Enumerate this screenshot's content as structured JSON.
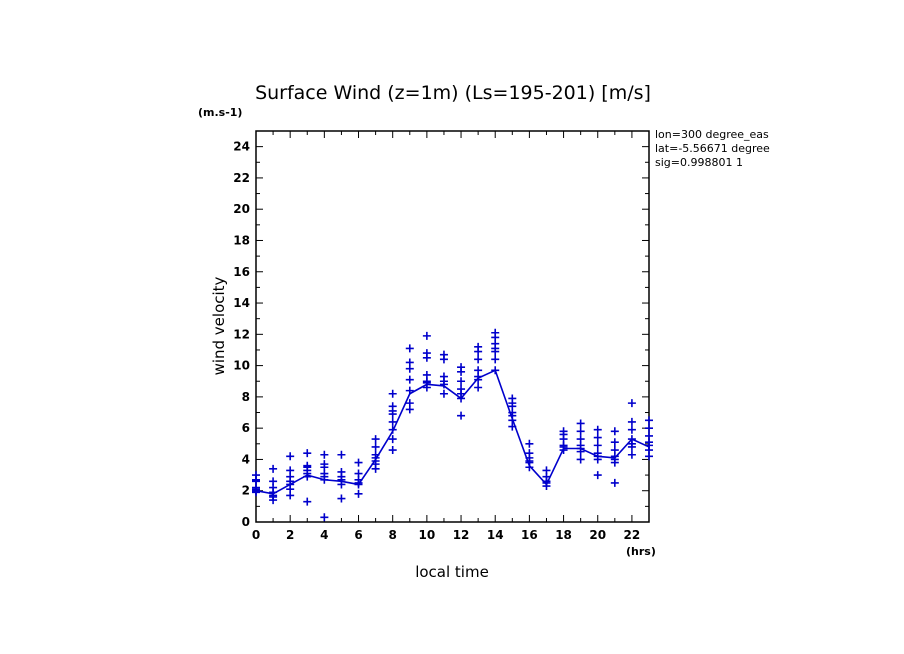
{
  "colors": {
    "series": "#0000cc",
    "axis": "#000000",
    "background": "#ffffff"
  },
  "chart_data": {
    "type": "line",
    "title": "Surface Wind (z=1m) (Ls=195-201) [m/s]",
    "xlabel": "local time",
    "ylabel": "wind velocity",
    "xunit": "(hrs)",
    "yunit": "(m.s-1)",
    "xlim": [
      0,
      23
    ],
    "ylim": [
      0,
      25
    ],
    "xticks": [
      0,
      2,
      4,
      6,
      8,
      10,
      12,
      14,
      16,
      18,
      20,
      22
    ],
    "yticks": [
      0,
      2,
      4,
      6,
      8,
      10,
      12,
      14,
      16,
      18,
      20,
      22,
      24
    ],
    "grid": false,
    "annotations": [
      "lon=300 degree_eas",
      "lat=-5.56671 degree",
      "sig=0.998801 1"
    ],
    "mean_line": {
      "x": [
        0,
        1,
        2,
        3,
        4,
        5,
        6,
        7,
        8,
        9,
        10,
        11,
        12,
        13,
        14,
        15,
        16,
        17,
        18,
        19,
        20,
        21,
        22,
        23
      ],
      "y": [
        2.0,
        1.8,
        2.4,
        3.0,
        2.7,
        2.6,
        2.4,
        4.0,
        5.8,
        8.2,
        8.8,
        8.7,
        7.9,
        9.2,
        9.7,
        6.6,
        3.6,
        2.4,
        4.7,
        4.7,
        4.2,
        4.1,
        5.3,
        4.8
      ]
    },
    "scatter": [
      {
        "x": 0,
        "y": [
          2.0,
          2.1,
          2.6,
          2.7,
          3.0,
          1.9,
          2.2
        ]
      },
      {
        "x": 1,
        "y": [
          1.4,
          1.7,
          1.9,
          2.2,
          2.6,
          3.4,
          1.6
        ]
      },
      {
        "x": 2,
        "y": [
          1.7,
          2.1,
          2.4,
          2.9,
          3.3,
          4.2,
          2.6
        ]
      },
      {
        "x": 3,
        "y": [
          1.3,
          2.9,
          3.3,
          3.6,
          4.4,
          3.1,
          3.5
        ]
      },
      {
        "x": 4,
        "y": [
          0.3,
          2.7,
          3.5,
          3.7,
          4.3,
          3.1,
          2.9
        ]
      },
      {
        "x": 5,
        "y": [
          1.5,
          2.4,
          2.9,
          3.2,
          4.3,
          2.7
        ]
      },
      {
        "x": 6,
        "y": [
          1.8,
          2.4,
          2.7,
          3.1,
          3.8,
          2.5
        ]
      },
      {
        "x": 7,
        "y": [
          3.4,
          3.9,
          4.3,
          4.8,
          5.3,
          3.7,
          4.1
        ]
      },
      {
        "x": 8,
        "y": [
          4.6,
          5.3,
          5.9,
          6.9,
          7.4,
          8.2,
          6.4,
          7.1
        ]
      },
      {
        "x": 9,
        "y": [
          7.2,
          7.6,
          8.4,
          9.1,
          9.8,
          10.2,
          11.1
        ]
      },
      {
        "x": 10,
        "y": [
          8.6,
          9.0,
          9.4,
          10.5,
          10.8,
          11.9,
          8.9
        ]
      },
      {
        "x": 11,
        "y": [
          8.2,
          8.8,
          9.3,
          10.4,
          10.7,
          9.0
        ]
      },
      {
        "x": 12,
        "y": [
          6.8,
          7.9,
          8.5,
          9.0,
          9.6,
          9.9,
          8.2
        ]
      },
      {
        "x": 13,
        "y": [
          8.6,
          9.1,
          9.7,
          10.4,
          10.9,
          11.2,
          9.3
        ]
      },
      {
        "x": 14,
        "y": [
          9.7,
          10.4,
          10.9,
          11.4,
          11.8,
          12.1,
          11.1
        ]
      },
      {
        "x": 15,
        "y": [
          6.1,
          6.5,
          7.0,
          7.4,
          7.9,
          6.8,
          7.6
        ]
      },
      {
        "x": 16,
        "y": [
          3.5,
          3.8,
          4.1,
          4.4,
          5.0,
          3.9
        ]
      },
      {
        "x": 17,
        "y": [
          2.3,
          2.6,
          2.9,
          3.3,
          2.5
        ]
      },
      {
        "x": 18,
        "y": [
          4.6,
          4.9,
          5.3,
          5.6,
          5.8,
          4.8
        ]
      },
      {
        "x": 19,
        "y": [
          4.0,
          4.5,
          4.9,
          5.3,
          5.8,
          6.3,
          4.7
        ]
      },
      {
        "x": 20,
        "y": [
          3.0,
          4.0,
          4.4,
          4.9,
          5.4,
          5.9,
          4.2
        ]
      },
      {
        "x": 21,
        "y": [
          2.5,
          3.8,
          4.2,
          4.6,
          5.1,
          5.8,
          4.0
        ]
      },
      {
        "x": 22,
        "y": [
          4.3,
          4.8,
          5.3,
          5.9,
          6.4,
          7.6,
          5.0
        ]
      },
      {
        "x": 23,
        "y": [
          4.2,
          4.6,
          5.1,
          5.5,
          6.0,
          6.5,
          4.9
        ]
      }
    ]
  }
}
